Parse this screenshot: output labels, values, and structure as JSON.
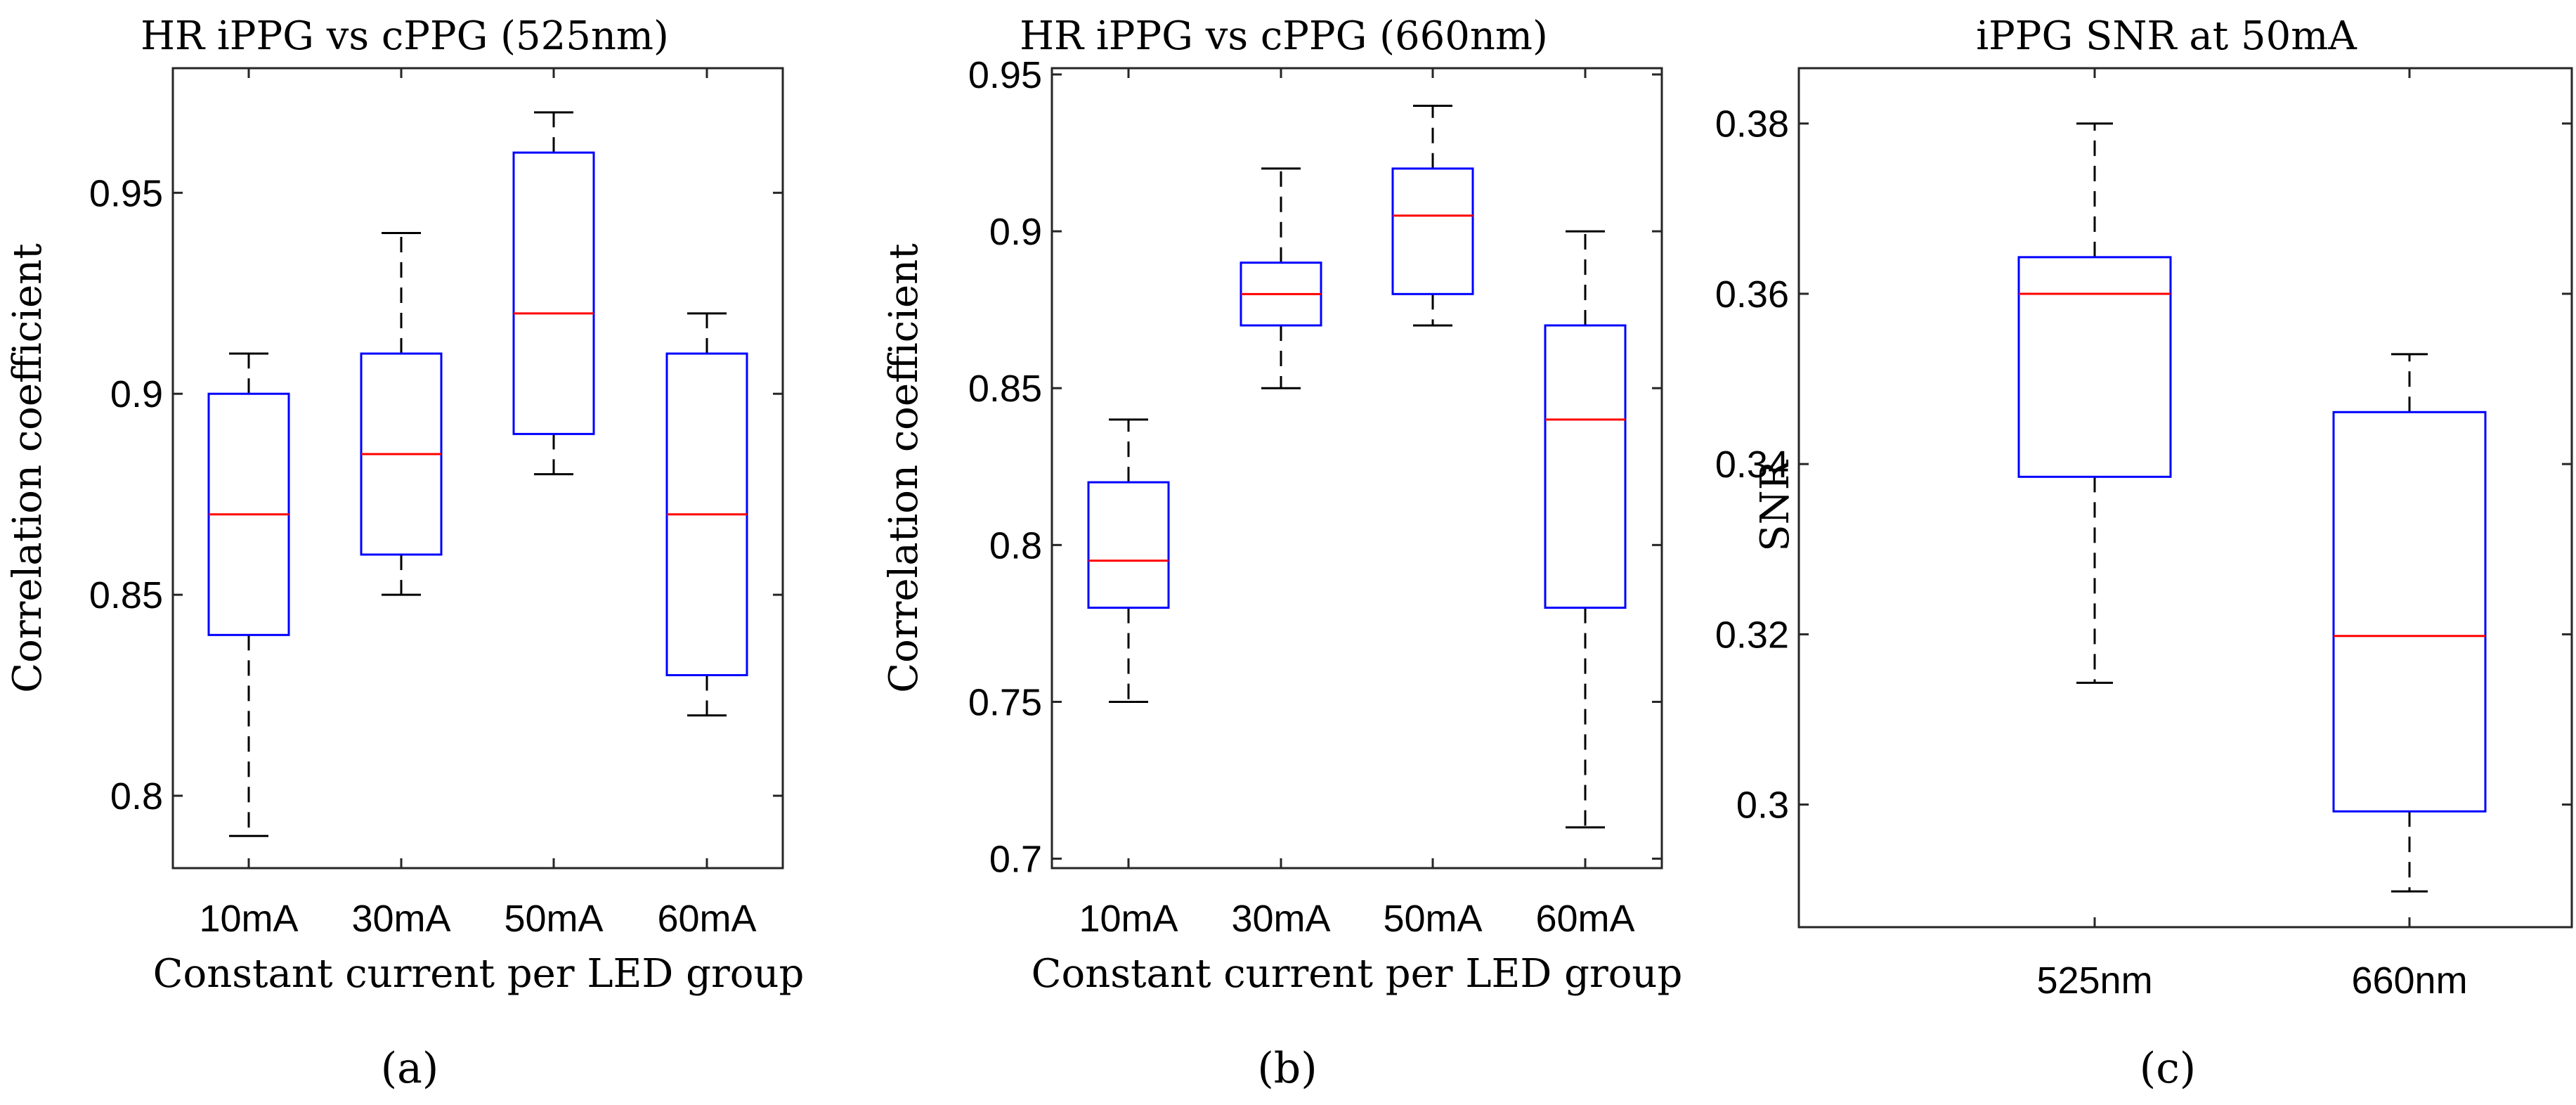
{
  "chart_data": [
    {
      "type": "boxplot",
      "panel_label": "(a)",
      "title": "HR iPPG vs cPPG (525nm)",
      "xlabel": "Constant current per LED group",
      "ylabel": "Correlation coefficient",
      "ylim": [
        0.782,
        0.981
      ],
      "yticks": [
        0.8,
        0.85,
        0.9,
        0.95
      ],
      "ytick_labels": [
        "0.8",
        "0.85",
        "0.9",
        "0.95"
      ],
      "categories": [
        "10mA",
        "30mA",
        "50mA",
        "60mA"
      ],
      "boxes": [
        {
          "whisker_low": 0.79,
          "q1": 0.84,
          "median": 0.87,
          "q3": 0.9,
          "whisker_high": 0.91
        },
        {
          "whisker_low": 0.85,
          "q1": 0.86,
          "median": 0.885,
          "q3": 0.91,
          "whisker_high": 0.94
        },
        {
          "whisker_low": 0.88,
          "q1": 0.89,
          "median": 0.92,
          "q3": 0.96,
          "whisker_high": 0.97
        },
        {
          "whisker_low": 0.82,
          "q1": 0.83,
          "median": 0.87,
          "q3": 0.91,
          "whisker_high": 0.92
        }
      ]
    },
    {
      "type": "boxplot",
      "panel_label": "(b)",
      "title": "HR iPPG vs cPPG (660nm)",
      "xlabel": "Constant current per LED group",
      "ylabel": "Correlation coefficient",
      "ylim": [
        0.697,
        0.952
      ],
      "yticks": [
        0.7,
        0.75,
        0.8,
        0.85,
        0.9,
        0.95
      ],
      "ytick_labels": [
        "0.7",
        "0.75",
        "0.8",
        "0.85",
        "0.9",
        "0.95"
      ],
      "categories": [
        "10mA",
        "30mA",
        "50mA",
        "60mA"
      ],
      "boxes": [
        {
          "whisker_low": 0.75,
          "q1": 0.78,
          "median": 0.795,
          "q3": 0.82,
          "whisker_high": 0.84
        },
        {
          "whisker_low": 0.85,
          "q1": 0.87,
          "median": 0.88,
          "q3": 0.89,
          "whisker_high": 0.92
        },
        {
          "whisker_low": 0.87,
          "q1": 0.88,
          "median": 0.905,
          "q3": 0.92,
          "whisker_high": 0.94
        },
        {
          "whisker_low": 0.71,
          "q1": 0.78,
          "median": 0.84,
          "q3": 0.87,
          "whisker_high": 0.9
        }
      ]
    },
    {
      "type": "boxplot",
      "panel_label": "(c)",
      "title": "iPPG SNR at 50mA",
      "xlabel": "",
      "ylabel": "SNR",
      "ylim": [
        0.2856,
        0.3865
      ],
      "yticks": [
        0.3,
        0.32,
        0.34,
        0.36,
        0.38
      ],
      "ytick_labels": [
        "0.3",
        "0.32",
        "0.34",
        "0.36",
        "0.38"
      ],
      "categories": [
        "525nm",
        "660nm"
      ],
      "boxes": [
        {
          "whisker_low": 0.3143,
          "q1": 0.3385,
          "median": 0.36,
          "q3": 0.3643,
          "whisker_high": 0.38
        },
        {
          "whisker_low": 0.2898,
          "q1": 0.2992,
          "median": 0.3198,
          "q3": 0.3461,
          "whisker_high": 0.3529
        }
      ]
    }
  ]
}
